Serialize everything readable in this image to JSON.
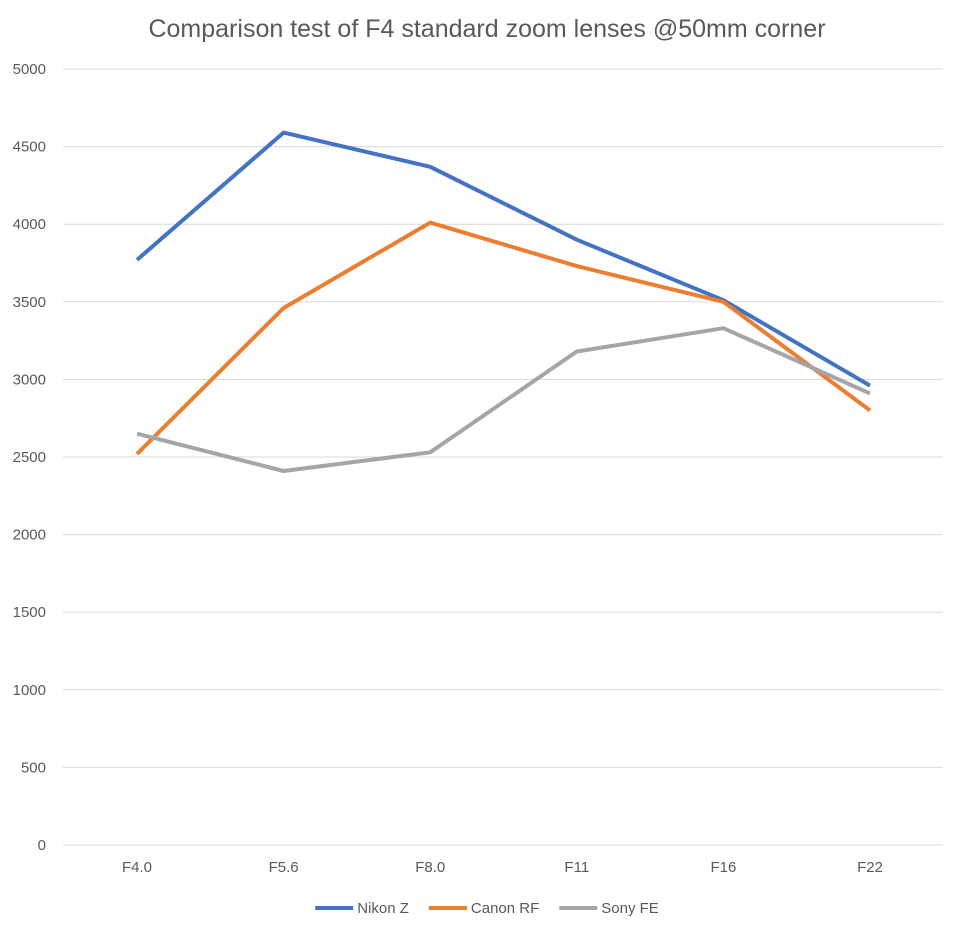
{
  "chart_data": {
    "type": "line",
    "title": "Comparison test of F4 standard zoom lenses @50mm corner",
    "xlabel": "",
    "ylabel": "",
    "categories": [
      "F4.0",
      "F5.6",
      "F8.0",
      "F11",
      "F16",
      "F22"
    ],
    "ylim": [
      0,
      5000
    ],
    "yticks": [
      0,
      500,
      1000,
      1500,
      2000,
      2500,
      3000,
      3500,
      4000,
      4500,
      5000
    ],
    "grid": true,
    "legend_position": "bottom",
    "series": [
      {
        "name": "Nikon Z",
        "color": "#4472c4",
        "values": [
          3770,
          4590,
          4370,
          3900,
          3510,
          2960
        ]
      },
      {
        "name": "Canon RF",
        "color": "#ed7d31",
        "values": [
          2520,
          3460,
          4010,
          3730,
          3500,
          2800
        ]
      },
      {
        "name": "Sony FE",
        "color": "#a5a5a5",
        "values": [
          2650,
          2410,
          2530,
          3180,
          3330,
          2910
        ]
      }
    ]
  }
}
